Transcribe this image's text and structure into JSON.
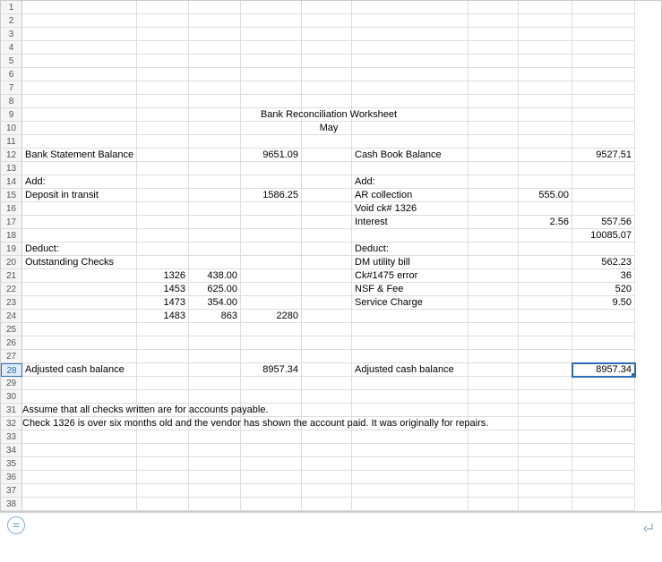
{
  "rowCount": 38,
  "selectedRow": 28,
  "selectedCellRow": 28,
  "selectedCellCol": "I",
  "columns": [
    "A",
    "B",
    "C",
    "D",
    "E",
    "F",
    "G",
    "H",
    "I"
  ],
  "columnWidths": {
    "A": 128,
    "B": 58,
    "C": 58,
    "D": 68,
    "E": 56,
    "F": 130,
    "G": 56,
    "H": 60,
    "I": 70
  },
  "cells": {
    "9": {
      "A": {
        "text": "Bank Reconciliation Worksheet",
        "span": "full-center"
      }
    },
    "10": {
      "A": {
        "text": "May",
        "span": "full-center"
      }
    },
    "12": {
      "A": {
        "text": "Bank Statement Balance"
      },
      "D": {
        "text": "9651.09",
        "align": "right"
      },
      "F": {
        "text": "Cash Book Balance"
      },
      "I": {
        "text": "9527.51",
        "align": "right"
      }
    },
    "14": {
      "A": {
        "text": "Add:"
      },
      "F": {
        "text": "Add:"
      }
    },
    "15": {
      "A": {
        "text": "Deposit in transit"
      },
      "D": {
        "text": "1586.25",
        "align": "right"
      },
      "F": {
        "text": "AR collection"
      },
      "H": {
        "text": "555.00",
        "align": "right"
      }
    },
    "16": {
      "F": {
        "text": "Void ck# 1326"
      }
    },
    "17": {
      "F": {
        "text": "Interest"
      },
      "H": {
        "text": "2.56",
        "align": "right"
      },
      "I": {
        "text": "557.56",
        "align": "right"
      }
    },
    "18": {
      "I": {
        "text": "10085.07",
        "align": "right"
      }
    },
    "19": {
      "A": {
        "text": "Deduct:"
      },
      "F": {
        "text": "Deduct:"
      }
    },
    "20": {
      "A": {
        "text": "Outstanding Checks"
      },
      "F": {
        "text": "DM utility bill"
      },
      "I": {
        "text": "562.23",
        "align": "right"
      }
    },
    "21": {
      "B": {
        "text": "1326",
        "align": "right"
      },
      "C": {
        "text": "438.00",
        "align": "right"
      },
      "F": {
        "text": "Ck#1475 error"
      },
      "I": {
        "text": "36",
        "align": "right"
      }
    },
    "22": {
      "B": {
        "text": "1453",
        "align": "right"
      },
      "C": {
        "text": "625.00",
        "align": "right"
      },
      "F": {
        "text": "NSF & Fee"
      },
      "I": {
        "text": "520",
        "align": "right"
      }
    },
    "23": {
      "B": {
        "text": "1473",
        "align": "right"
      },
      "C": {
        "text": "354.00",
        "align": "right"
      },
      "F": {
        "text": "Service Charge"
      },
      "I": {
        "text": "9.50",
        "align": "right"
      }
    },
    "24": {
      "B": {
        "text": "1483",
        "align": "right"
      },
      "C": {
        "text": "863",
        "align": "right"
      },
      "D": {
        "text": "2280",
        "align": "right"
      }
    },
    "28": {
      "A": {
        "text": "Adjusted cash balance"
      },
      "D": {
        "text": "8957.34",
        "align": "right"
      },
      "F": {
        "text": "Adjusted cash balance"
      },
      "I": {
        "text": "8957.34",
        "align": "right"
      }
    },
    "31": {
      "A": {
        "text": "Assume that all checks written are for accounts payable.",
        "span": "full-left"
      }
    },
    "32": {
      "A": {
        "text": "Check 1326 is over six months old and the vendor has shown the account paid. It was originally for repairs.",
        "span": "full-left"
      }
    }
  },
  "footer": {
    "equalsTooltip": "=",
    "cornerTooltip": "↲"
  },
  "colors": {
    "gridline": "#dddddd",
    "headerBorder": "#cccccc",
    "selection": "#2a6db6",
    "rowHeaderBg": "#f5f5f5",
    "rowHeaderText": "#555555",
    "text": "#000000",
    "background": "#ffffff"
  }
}
